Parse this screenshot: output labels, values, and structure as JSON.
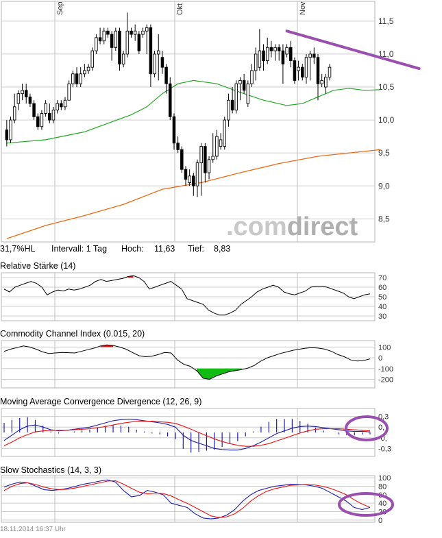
{
  "header": {
    "hl_pct": "31,7%HL",
    "interval": "Intervall: 1 Tag",
    "high_label": "Hoch:",
    "high_value": "11,63",
    "low_label": "Tief:",
    "low_value": "8,83"
  },
  "watermark": {
    "dot": ".",
    "part1": "com",
    "part2": "direct"
  },
  "footer": {
    "timestamp": "18.11.2014 16:37 Uhr"
  },
  "colors": {
    "candle": "#000000",
    "sma_short": "#22aa22",
    "sma_long": "#ee6a10",
    "annotation": "#9a4fb0",
    "grid": "#cccccc",
    "month_line": "#bdbdbd",
    "rsi_high": "#ee1111",
    "cci_pos": "#ee1111",
    "cci_neg": "#11bb11",
    "macd": "#1a1aaa",
    "signal": "#ee1111",
    "stoch_k": "#1a1aaa",
    "stoch_d": "#ee1111"
  },
  "chart_data": [
    {
      "type": "candlestick",
      "title": "",
      "x_labels": [
        "Sep",
        "Okt",
        "Nov"
      ],
      "y_ticks": [
        "11,5",
        "11,0",
        "10,5",
        "10,0",
        "9,5",
        "9,0",
        "8,5"
      ],
      "ylim": [
        8.15,
        11.8
      ],
      "y_tick_values": [
        11.5,
        11.0,
        10.5,
        10.0,
        9.5,
        9.0,
        8.5
      ],
      "candles": [
        [
          9.85,
          9.7,
          10.0,
          9.6
        ],
        [
          9.7,
          10.0,
          10.05,
          9.65
        ],
        [
          10.0,
          10.2,
          10.4,
          9.95
        ],
        [
          10.25,
          10.4,
          10.45,
          10.15
        ],
        [
          10.4,
          10.45,
          10.55,
          10.3
        ],
        [
          10.45,
          10.35,
          10.55,
          10.25
        ],
        [
          10.35,
          10.25,
          10.4,
          10.2
        ],
        [
          10.25,
          10.05,
          10.3,
          10.0
        ],
        [
          10.05,
          9.9,
          10.1,
          9.85
        ],
        [
          9.9,
          10.1,
          10.15,
          9.85
        ],
        [
          10.1,
          10.25,
          10.3,
          10.05
        ],
        [
          10.1,
          10.0,
          10.25,
          9.95
        ],
        [
          10.0,
          10.15,
          10.2,
          9.95
        ],
        [
          10.15,
          10.25,
          10.3,
          10.1
        ],
        [
          10.25,
          10.2,
          10.3,
          10.15
        ],
        [
          10.2,
          10.3,
          10.35,
          10.15
        ],
        [
          10.3,
          10.55,
          10.6,
          10.3
        ],
        [
          10.55,
          10.7,
          10.75,
          10.5
        ],
        [
          10.7,
          10.55,
          10.8,
          10.5
        ],
        [
          10.55,
          10.7,
          10.8,
          10.5
        ],
        [
          10.7,
          10.75,
          10.85,
          10.65
        ],
        [
          10.75,
          10.8,
          10.85,
          10.7
        ],
        [
          10.8,
          11.05,
          11.1,
          10.75
        ],
        [
          11.05,
          11.25,
          11.3,
          11.0
        ],
        [
          11.25,
          11.2,
          11.4,
          11.15
        ],
        [
          11.2,
          11.35,
          11.4,
          11.15
        ],
        [
          11.35,
          11.3,
          11.4,
          11.25
        ],
        [
          11.3,
          11.1,
          11.35,
          10.9
        ],
        [
          11.1,
          11.35,
          11.4,
          11.05
        ],
        [
          11.35,
          10.85,
          11.4,
          10.75
        ],
        [
          10.85,
          11.0,
          11.05,
          10.8
        ],
        [
          11.0,
          11.35,
          11.63,
          10.95
        ],
        [
          11.35,
          11.3,
          11.4,
          11.25
        ],
        [
          11.3,
          11.35,
          11.45,
          11.2
        ],
        [
          11.3,
          11.05,
          11.35,
          11.0
        ],
        [
          11.3,
          11.35,
          11.4,
          11.25
        ],
        [
          11.35,
          11.4,
          11.45,
          11.0
        ],
        [
          11.4,
          10.7,
          11.45,
          10.5
        ],
        [
          10.7,
          11.0,
          11.05,
          10.65
        ],
        [
          11.0,
          11.05,
          11.3,
          10.6
        ],
        [
          10.95,
          10.8,
          11.05,
          10.7
        ],
        [
          10.8,
          10.55,
          10.85,
          10.4
        ],
        [
          10.55,
          10.05,
          10.65,
          10.0
        ],
        [
          10.05,
          9.65,
          10.1,
          9.55
        ],
        [
          9.65,
          9.55,
          9.75,
          9.5
        ],
        [
          9.55,
          9.25,
          9.6,
          9.2
        ],
        [
          9.25,
          9.1,
          9.3,
          9.0
        ],
        [
          9.05,
          9.15,
          9.25,
          9.0
        ],
        [
          9.15,
          9.0,
          9.2,
          8.85
        ],
        [
          9.0,
          9.35,
          9.4,
          8.83
        ],
        [
          9.35,
          9.6,
          9.65,
          8.85
        ],
        [
          9.6,
          9.2,
          9.65,
          9.05
        ],
        [
          9.2,
          9.4,
          9.45,
          9.1
        ],
        [
          9.4,
          9.45,
          9.8,
          9.35
        ],
        [
          9.45,
          9.75,
          9.85,
          9.4
        ],
        [
          9.6,
          9.7,
          9.8,
          9.55
        ],
        [
          9.6,
          10.0,
          10.05,
          9.55
        ],
        [
          10.0,
          10.3,
          10.4,
          9.9
        ],
        [
          10.3,
          10.15,
          10.5,
          10.1
        ],
        [
          10.15,
          10.55,
          10.6,
          10.1
        ],
        [
          10.55,
          10.6,
          10.65,
          10.3
        ],
        [
          10.6,
          10.45,
          10.7,
          10.4
        ],
        [
          10.25,
          10.55,
          10.6,
          10.2
        ],
        [
          10.55,
          10.75,
          10.85,
          10.5
        ],
        [
          10.75,
          11.0,
          11.1,
          10.6
        ],
        [
          10.8,
          11.05,
          11.38,
          10.75
        ],
        [
          11.05,
          10.9,
          11.15,
          10.75
        ],
        [
          10.9,
          11.1,
          11.25,
          10.85
        ],
        [
          11.1,
          11.05,
          11.2,
          10.95
        ],
        [
          11.05,
          11.1,
          11.15,
          10.9
        ],
        [
          11.1,
          11.05,
          11.15,
          10.9
        ],
        [
          11.05,
          10.85,
          11.15,
          10.55
        ],
        [
          11.0,
          11.1,
          11.15,
          10.95
        ],
        [
          11.1,
          10.9,
          11.2,
          10.8
        ],
        [
          10.9,
          10.6,
          10.95,
          10.55
        ],
        [
          10.75,
          10.8,
          10.9,
          10.6
        ],
        [
          10.8,
          10.65,
          10.85,
          10.6
        ],
        [
          10.65,
          10.95,
          11.0,
          10.55
        ],
        [
          10.95,
          11.0,
          11.05,
          10.6
        ],
        [
          11.0,
          10.95,
          11.1,
          10.85
        ],
        [
          10.95,
          10.55,
          11.0,
          10.3
        ],
        [
          10.55,
          10.6,
          10.7,
          10.5
        ],
        [
          10.5,
          10.65,
          10.7,
          10.4
        ],
        [
          10.65,
          10.8,
          10.85,
          10.6
        ]
      ],
      "sma_short": [
        [
          0,
          9.65
        ],
        [
          10,
          9.7
        ],
        [
          20,
          9.82
        ],
        [
          26,
          9.95
        ],
        [
          32,
          10.08
        ],
        [
          36,
          10.2
        ],
        [
          40,
          10.4
        ],
        [
          44,
          10.55
        ],
        [
          48,
          10.6
        ],
        [
          54,
          10.55
        ],
        [
          60,
          10.42
        ],
        [
          66,
          10.3
        ],
        [
          72,
          10.22
        ],
        [
          76,
          10.25
        ],
        [
          80,
          10.35
        ],
        [
          84,
          10.45
        ],
        [
          88,
          10.48
        ],
        [
          92,
          10.45
        ],
        [
          96,
          10.46
        ]
      ],
      "sma_long": [
        [
          0,
          8.2
        ],
        [
          10,
          8.4
        ],
        [
          20,
          8.55
        ],
        [
          30,
          8.72
        ],
        [
          40,
          8.95
        ],
        [
          50,
          9.05
        ],
        [
          60,
          9.2
        ],
        [
          70,
          9.34
        ],
        [
          80,
          9.45
        ],
        [
          96,
          9.55
        ]
      ],
      "trendline": [
        [
          72,
          11.35
        ],
        [
          106,
          10.78
        ]
      ]
    },
    {
      "type": "line",
      "title": "Relative Stärke (14)",
      "ylim": [
        25,
        75
      ],
      "y_ticks": [
        "70",
        "60",
        "50",
        "40",
        "30"
      ],
      "y_tick_values": [
        70,
        60,
        50,
        40,
        30
      ],
      "overbought": 70,
      "values": [
        58,
        55,
        60,
        62,
        64,
        66,
        64,
        60,
        52,
        55,
        57,
        56,
        58,
        57,
        58,
        60,
        62,
        66,
        68,
        66,
        67,
        68,
        69,
        71,
        72,
        70,
        66,
        58,
        60,
        62,
        64,
        66,
        62,
        58,
        48,
        46,
        44,
        42,
        36,
        33,
        31,
        31,
        33,
        36,
        42,
        46,
        50,
        55,
        58,
        60,
        62,
        60,
        55,
        53,
        52,
        54,
        56,
        60,
        61,
        61,
        60,
        58,
        56,
        54,
        50,
        48,
        50,
        52,
        53
      ]
    },
    {
      "type": "line",
      "title": "Commodity Channel Index (0.015, 20)",
      "ylim": [
        -280,
        160
      ],
      "y_ticks": [
        "100",
        "0",
        "-100",
        "-200"
      ],
      "y_tick_values": [
        100,
        0,
        -100,
        -200
      ],
      "values": [
        60,
        80,
        95,
        110,
        100,
        80,
        55,
        40,
        45,
        50,
        48,
        45,
        60,
        75,
        90,
        110,
        120,
        115,
        100,
        80,
        50,
        20,
        10,
        15,
        30,
        50,
        45,
        -20,
        -60,
        -80,
        -120,
        -190,
        -200,
        -170,
        -150,
        -130,
        -120,
        -110,
        -95,
        -70,
        -30,
        0,
        20,
        40,
        55,
        70,
        80,
        90,
        95,
        90,
        80,
        60,
        30,
        10,
        -20,
        -30,
        -25,
        -10
      ]
    },
    {
      "type": "line",
      "title": "Moving Average Convergence Divergence (12, 26, 9)",
      "ylim": [
        -0.45,
        0.45
      ],
      "y_ticks": [
        "0,3",
        "0,",
        "-0,",
        "-0,3"
      ],
      "y_tick_values": [
        0.3,
        0.1,
        -0.1,
        -0.3
      ],
      "macd": [
        -0.15,
        -0.05,
        0.05,
        0.12,
        0.14,
        0.1,
        0.05,
        0.03,
        0.04,
        0.06,
        0.08,
        0.1,
        0.14,
        0.18,
        0.22,
        0.24,
        0.25,
        0.24,
        0.22,
        0.2,
        0.18,
        0.15,
        0.1,
        -0.05,
        -0.15,
        -0.2,
        -0.25,
        -0.3,
        -0.32,
        -0.33,
        -0.33,
        -0.3,
        -0.25,
        -0.18,
        -0.1,
        -0.02,
        0.03,
        0.08,
        0.11,
        0.12,
        0.11,
        0.09,
        0.07,
        0.05,
        0.03,
        0.02,
        0.02,
        0.01
      ],
      "signal": [
        -0.25,
        -0.18,
        -0.1,
        -0.04,
        0.01,
        0.03,
        0.04,
        0.04,
        0.04,
        0.05,
        0.06,
        0.07,
        0.09,
        0.11,
        0.14,
        0.17,
        0.19,
        0.21,
        0.21,
        0.21,
        0.2,
        0.19,
        0.17,
        0.12,
        0.06,
        0.0,
        -0.06,
        -0.12,
        -0.17,
        -0.21,
        -0.24,
        -0.26,
        -0.26,
        -0.24,
        -0.21,
        -0.16,
        -0.11,
        -0.06,
        -0.01,
        0.03,
        0.06,
        0.07,
        0.07,
        0.07,
        0.06,
        0.05,
        0.04,
        0.03
      ]
    },
    {
      "type": "line",
      "title": "Slow Stochastics (14, 3, 3)",
      "ylim": [
        -5,
        105
      ],
      "y_ticks": [
        "100",
        "80",
        "60",
        "40",
        "20",
        "0"
      ],
      "y_tick_values": [
        100,
        80,
        60,
        40,
        20,
        0
      ],
      "k": [
        78,
        85,
        90,
        88,
        80,
        72,
        70,
        72,
        75,
        80,
        85,
        88,
        92,
        95,
        90,
        70,
        55,
        58,
        70,
        66,
        60,
        40,
        35,
        30,
        15,
        5,
        3,
        5,
        12,
        25,
        45,
        60,
        70,
        75,
        80,
        82,
        85,
        84,
        83,
        80,
        75,
        65,
        55,
        45,
        30,
        25,
        30
      ],
      "d": [
        70,
        80,
        86,
        88,
        84,
        78,
        74,
        72,
        73,
        76,
        80,
        84,
        88,
        92,
        93,
        85,
        75,
        66,
        62,
        64,
        63,
        57,
        48,
        40,
        30,
        20,
        10,
        6,
        8,
        15,
        28,
        45,
        58,
        68,
        74,
        78,
        82,
        83,
        84,
        83,
        80,
        75,
        68,
        60,
        48,
        38,
        30
      ]
    }
  ]
}
